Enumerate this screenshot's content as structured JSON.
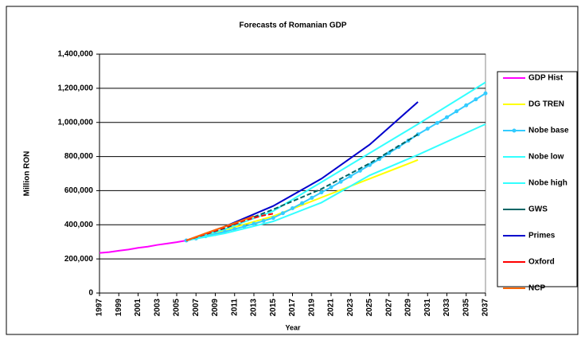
{
  "chart_data": {
    "type": "line",
    "title": "Forecasts of Romanian GDP",
    "x_label": "Year",
    "y_label": "Million RON",
    "xlim": [
      1997,
      2037
    ],
    "xticks": [
      1997,
      1999,
      2001,
      2003,
      2005,
      2007,
      2009,
      2011,
      2013,
      2015,
      2017,
      2019,
      2021,
      2023,
      2025,
      2027,
      2029,
      2031,
      2033,
      2035,
      2037
    ],
    "ylim": [
      0,
      1400000
    ],
    "yticks": [
      0,
      {
        "value": 200000,
        "label": "200,000"
      },
      {
        "value": 400000,
        "label": "400,000"
      },
      {
        "value": 600000,
        "label": "600,000"
      },
      {
        "value": 800000,
        "label": "800,000"
      },
      {
        "value": 1000000,
        "label": "1,000,000"
      },
      {
        "value": 1200000,
        "label": "1,200,000"
      },
      {
        "value": 1400000,
        "label": "1,400,000"
      }
    ],
    "grid": true,
    "series": [
      {
        "name": "GDP Hist",
        "color": "#ff00ff",
        "x": [
          1997,
          1998,
          1999,
          2000,
          2001,
          2002,
          2003,
          2004,
          2005,
          2006
        ],
        "values": [
          235000,
          240000,
          248000,
          255000,
          265000,
          272000,
          282000,
          290000,
          298000,
          308000
        ]
      },
      {
        "name": "DG TREN",
        "color": "#ffff00",
        "x": [
          2006,
          2010,
          2015,
          2020,
          2025,
          2030
        ],
        "values": [
          308000,
          370000,
          450000,
          560000,
          670000,
          780000
        ]
      },
      {
        "name": "Nobe base",
        "color": "#33ccff",
        "marker": true,
        "x": [
          2006,
          2007,
          2008,
          2009,
          2010,
          2011,
          2012,
          2013,
          2014,
          2015,
          2016,
          2017,
          2018,
          2019,
          2020,
          2021,
          2022,
          2023,
          2024,
          2025,
          2026,
          2027,
          2028,
          2029,
          2030,
          2031,
          2032,
          2033,
          2034,
          2035,
          2036,
          2037
        ],
        "values": [
          308000,
          320000,
          333000,
          346000,
          360000,
          375000,
          390000,
          406000,
          423000,
          440000,
          468000,
          497000,
          527000,
          558000,
          590000,
          620000,
          652000,
          684000,
          717000,
          750000,
          785000,
          820000,
          856000,
          893000,
          930000,
          963000,
          997000,
          1030000,
          1065000,
          1100000,
          1135000,
          1170000
        ]
      },
      {
        "name": "Nobe low",
        "color": "#33ffff",
        "x": [
          2006,
          2010,
          2015,
          2020,
          2025,
          2030,
          2037
        ],
        "values": [
          308000,
          350000,
          420000,
          530000,
          690000,
          810000,
          990000
        ]
      },
      {
        "name": "Nobe high",
        "color": "#33ffff",
        "x": [
          2006,
          2010,
          2015,
          2020,
          2025,
          2030,
          2037
        ],
        "values": [
          308000,
          375000,
          480000,
          650000,
          820000,
          990000,
          1235000
        ]
      },
      {
        "name": "GWS",
        "color": "#006666",
        "dashed": true,
        "x": [
          2006,
          2010,
          2015,
          2020,
          2025,
          2030
        ],
        "values": [
          308000,
          380000,
          490000,
          610000,
          760000,
          930000
        ]
      },
      {
        "name": "Primes",
        "color": "#0000cc",
        "x": [
          2006,
          2010,
          2015,
          2020,
          2025,
          2030
        ],
        "values": [
          308000,
          390000,
          510000,
          670000,
          870000,
          1120000
        ]
      },
      {
        "name": "Oxford",
        "color": "#ff0000",
        "dashed": true,
        "x": [
          2006,
          2008,
          2010,
          2012,
          2014,
          2015
        ],
        "values": [
          308000,
          345000,
          385000,
          425000,
          455000,
          465000
        ]
      },
      {
        "name": "NCP",
        "color": "#ff6600",
        "x": [
          2006,
          2008,
          2010,
          2012,
          2013
        ],
        "values": [
          308000,
          350000,
          390000,
          430000,
          450000
        ]
      }
    ]
  }
}
